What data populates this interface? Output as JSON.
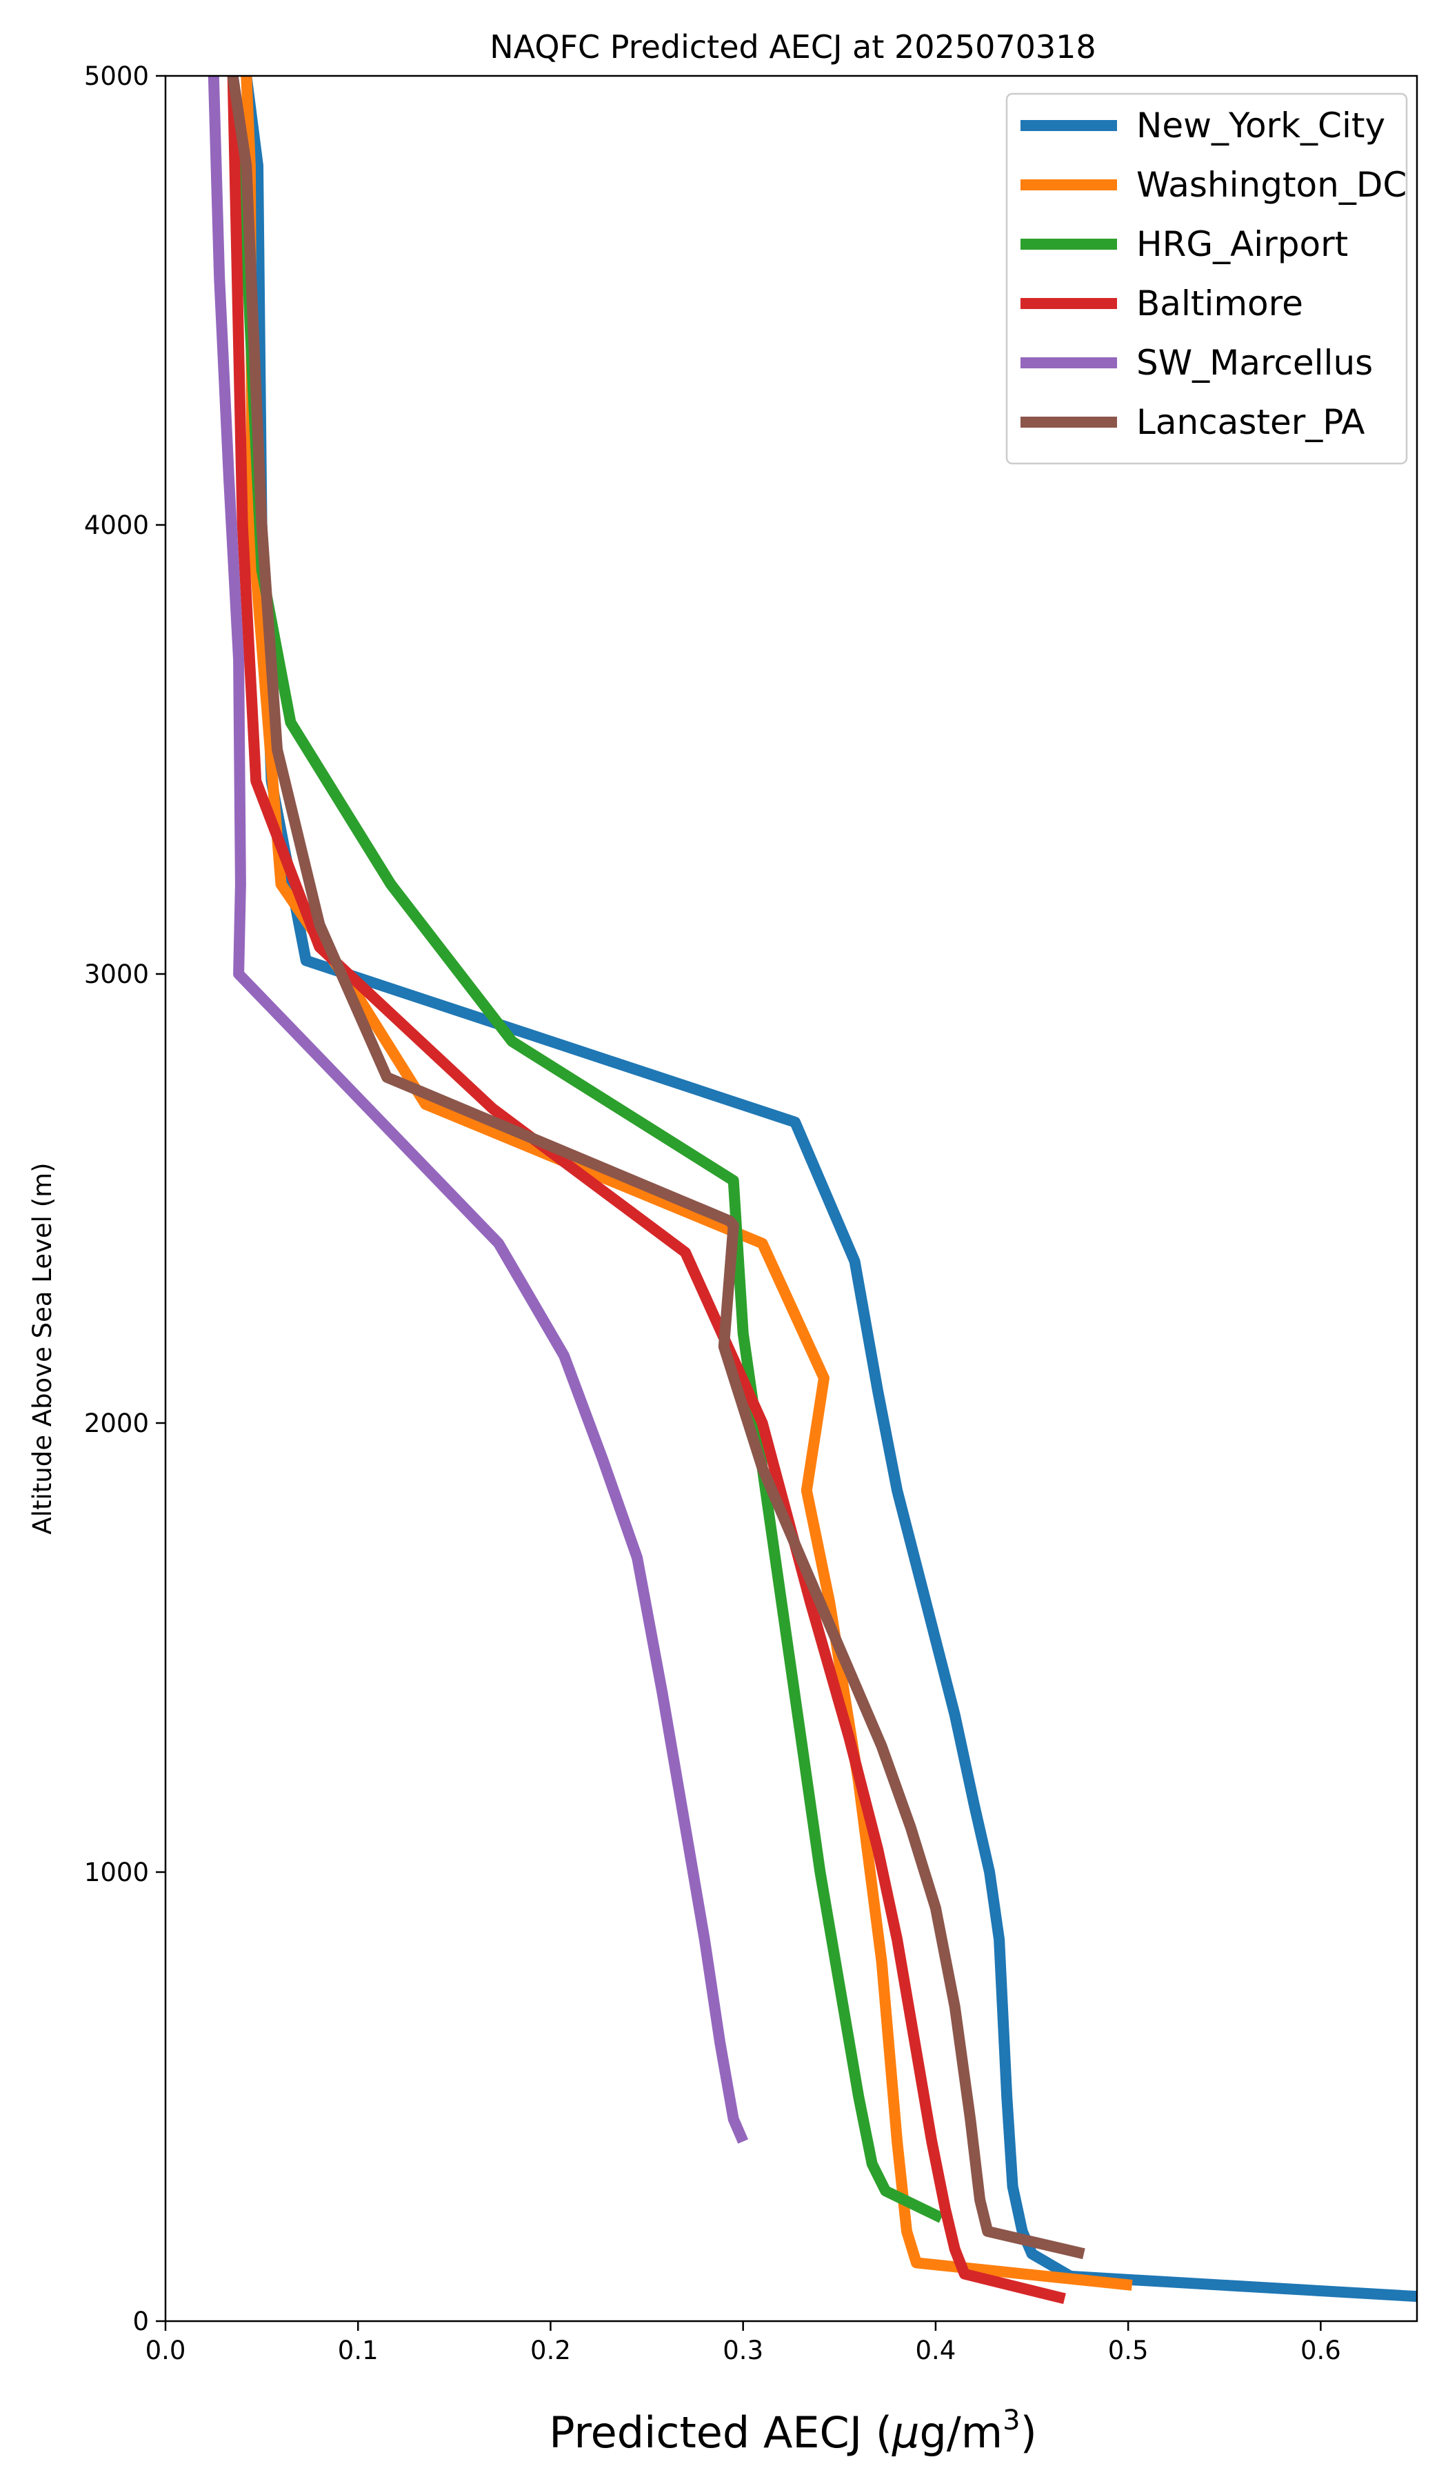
{
  "chart_data": {
    "type": "line",
    "title": "NAQFC Predicted AECJ at 2025070318",
    "xlabel": "Predicted AECJ",
    "xlabel_unit_prefix": "μ",
    "xlabel_unit_body": "g/m",
    "xlabel_unit_exp": "3",
    "ylabel": "Altitude Above Sea Level (m)",
    "xlim": [
      0,
      0.65
    ],
    "ylim": [
      0,
      5000
    ],
    "xticks": [
      0.0,
      0.1,
      0.2,
      0.3,
      0.4,
      0.5,
      0.6
    ],
    "xtick_labels": [
      "0.0",
      "0.1",
      "0.2",
      "0.3",
      "0.4",
      "0.5",
      "0.6"
    ],
    "yticks": [
      0,
      1000,
      2000,
      3000,
      4000,
      5000
    ],
    "ytick_labels": [
      "0",
      "1000",
      "2000",
      "3000",
      "4000",
      "5000"
    ],
    "grid": false,
    "legend_position": "top-right",
    "series": [
      {
        "name": "New_York_City",
        "color": "#1f77b4",
        "x": [
          0.65,
          0.47,
          0.45,
          0.445,
          0.44,
          0.437,
          0.433,
          0.428,
          0.42,
          0.41,
          0.395,
          0.38,
          0.37,
          0.358,
          0.327,
          0.073,
          0.055,
          0.05,
          0.048,
          0.042
        ],
        "y": [
          55,
          100,
          150,
          200,
          300,
          500,
          850,
          1000,
          1150,
          1350,
          1600,
          1850,
          2070,
          2360,
          2670,
          3030,
          3430,
          4000,
          4800,
          5000
        ]
      },
      {
        "name": "Washington_DC",
        "color": "#ff7f0e",
        "x": [
          0.502,
          0.39,
          0.385,
          0.38,
          0.372,
          0.36,
          0.345,
          0.333,
          0.342,
          0.31,
          0.135,
          0.1,
          0.06,
          0.045,
          0.044,
          0.042
        ],
        "y": [
          80,
          130,
          200,
          400,
          800,
          1200,
          1600,
          1850,
          2100,
          2400,
          2710,
          2950,
          3200,
          4000,
          4800,
          5000
        ]
      },
      {
        "name": "HRG_Airport",
        "color": "#2ca02c",
        "x": [
          0.403,
          0.374,
          0.367,
          0.36,
          0.35,
          0.34,
          0.33,
          0.32,
          0.31,
          0.3,
          0.295,
          0.18,
          0.117,
          0.065,
          0.05,
          0.04,
          0.035
        ],
        "y": [
          230,
          290,
          350,
          500,
          750,
          1000,
          1300,
          1600,
          1900,
          2200,
          2540,
          2850,
          3200,
          3560,
          3900,
          4800,
          5000
        ]
      },
      {
        "name": "Baltimore",
        "color": "#d62728",
        "x": [
          0.467,
          0.415,
          0.41,
          0.405,
          0.398,
          0.39,
          0.38,
          0.37,
          0.355,
          0.335,
          0.31,
          0.27,
          0.17,
          0.08,
          0.047,
          0.04,
          0.035
        ],
        "y": [
          50,
          105,
          160,
          250,
          400,
          600,
          850,
          1050,
          1300,
          1600,
          2000,
          2380,
          2700,
          3060,
          3430,
          4000,
          5000
        ]
      },
      {
        "name": "SW_Marcellus",
        "color": "#9467bd",
        "x": [
          0.3,
          0.295,
          0.288,
          0.28,
          0.27,
          0.258,
          0.245,
          0.227,
          0.207,
          0.173,
          0.038,
          0.039,
          0.038,
          0.033,
          0.028,
          0.025
        ],
        "y": [
          400,
          450,
          620,
          850,
          1100,
          1400,
          1700,
          1920,
          2150,
          2400,
          3000,
          3200,
          3700,
          4100,
          4550,
          5000
        ]
      },
      {
        "name": "Lancaster_PA",
        "color": "#8c564b",
        "x": [
          0.477,
          0.427,
          0.423,
          0.418,
          0.41,
          0.4,
          0.387,
          0.372,
          0.355,
          0.335,
          0.31,
          0.29,
          0.295,
          0.293,
          0.115,
          0.08,
          0.058,
          0.05,
          0.042,
          0.035
        ],
        "y": [
          150,
          200,
          270,
          450,
          700,
          920,
          1100,
          1280,
          1450,
          1650,
          1900,
          2170,
          2440,
          2450,
          2770,
          3110,
          3500,
          4000,
          4800,
          5000
        ]
      }
    ]
  }
}
